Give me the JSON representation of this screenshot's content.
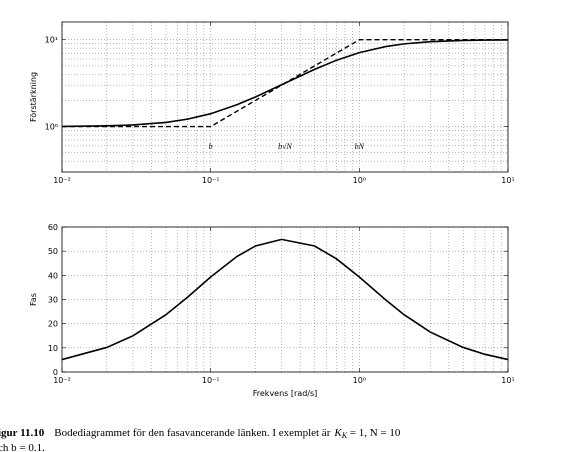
{
  "chart_data": [
    {
      "type": "line",
      "ylabel": "Förstärkning",
      "xscale": "log",
      "yscale": "log",
      "grid": true,
      "minor_grid": true,
      "xlim": [
        0.01,
        10
      ],
      "ylim": [
        0.3,
        16
      ],
      "xticks": [
        {
          "value": 0.01,
          "label": "10⁻²"
        },
        {
          "value": 0.1,
          "label": "10⁻¹"
        },
        {
          "value": 1,
          "label": "10⁰"
        },
        {
          "value": 10,
          "label": "10¹"
        }
      ],
      "yticks": [
        {
          "value": 1,
          "label": "10⁰"
        },
        {
          "value": 10,
          "label": "10¹"
        }
      ],
      "x": [
        0.01,
        0.02,
        0.03,
        0.05,
        0.07,
        0.1,
        0.15,
        0.2,
        0.3,
        0.5,
        0.7,
        1,
        1.5,
        2,
        3,
        5,
        7,
        10
      ],
      "series": [
        {
          "color": "#000000",
          "style": "solid",
          "values": [
            1.005,
            1.02,
            1.044,
            1.117,
            1.218,
            1.407,
            1.783,
            2.193,
            3.029,
            4.561,
            5.793,
            7.107,
            8.338,
            8.955,
            9.493,
            9.808,
            9.901,
            9.951
          ]
        },
        {
          "color": "#000000",
          "style": "dashed",
          "x": [
            0.01,
            0.1,
            1,
            10
          ],
          "values": [
            1,
            1,
            10,
            10
          ]
        }
      ],
      "annotations": [
        {
          "text": "b",
          "x": 0.1
        },
        {
          "text": "b√N",
          "x": 0.316
        },
        {
          "text": "bN",
          "x": 1
        }
      ]
    },
    {
      "type": "line",
      "xlabel": "Frekvens [rad/s]",
      "ylabel": "Fas",
      "xscale": "log",
      "grid": true,
      "minor_grid": true,
      "xlim": [
        0.01,
        10
      ],
      "ylim": [
        0,
        60
      ],
      "xticks": [
        {
          "value": 0.01,
          "label": "10⁻²"
        },
        {
          "value": 0.1,
          "label": "10⁻¹"
        },
        {
          "value": 1,
          "label": "10⁰"
        },
        {
          "value": 10,
          "label": "10¹"
        }
      ],
      "yticks": [
        0,
        10,
        20,
        30,
        40,
        50,
        60
      ],
      "x": [
        0.01,
        0.02,
        0.03,
        0.05,
        0.07,
        0.1,
        0.15,
        0.2,
        0.3,
        0.5,
        0.7,
        1,
        1.5,
        2,
        3,
        5,
        7,
        10
      ],
      "series": [
        {
          "color": "#000000",
          "style": "solid",
          "values": [
            5.14,
            10.16,
            14.98,
            23.7,
            30.99,
            39.29,
            47.78,
            52.13,
            54.87,
            52.13,
            46.88,
            39.29,
            29.88,
            23.71,
            16.52,
            10.16,
            7.31,
            5.14
          ]
        }
      ]
    }
  ],
  "caption": {
    "label": "igur 11.10",
    "text": "Bodediagrammet för den fasavancerande länken. I exemplet är",
    "math": "K",
    "math_sub": "K",
    "math_rest": " = 1, N = 10",
    "line2": "ch b = 0.1."
  }
}
